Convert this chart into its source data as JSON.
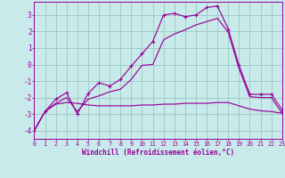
{
  "bg_color": "#c8eaea",
  "grid_color": "#9ac8c0",
  "line_color": "#990099",
  "xlim": [
    0,
    23
  ],
  "ylim": [
    -4.5,
    3.8
  ],
  "yticks": [
    -4,
    -3,
    -2,
    -1,
    0,
    1,
    2,
    3
  ],
  "xticks": [
    0,
    1,
    2,
    3,
    4,
    5,
    6,
    7,
    8,
    9,
    10,
    11,
    12,
    13,
    14,
    15,
    16,
    17,
    18,
    19,
    20,
    21,
    22,
    23
  ],
  "xlabel": "Windchill (Refroidissement éolien,°C)",
  "line1_x": [
    0,
    1,
    2,
    3,
    4,
    5,
    6,
    7,
    8,
    9,
    10,
    11,
    12,
    13,
    14,
    15,
    16,
    17,
    18,
    19,
    20,
    21,
    22,
    23
  ],
  "line1_y": [
    -4.0,
    -2.85,
    -2.1,
    -1.7,
    -3.0,
    -1.75,
    -1.1,
    -1.3,
    -0.9,
    -0.1,
    0.65,
    1.4,
    3.0,
    3.1,
    2.9,
    3.0,
    3.45,
    3.55,
    2.15,
    -0.05,
    -1.8,
    -1.8,
    -1.8,
    -2.75
  ],
  "line2_x": [
    0,
    1,
    2,
    3,
    4,
    5,
    6,
    7,
    8,
    9,
    10,
    11,
    12,
    13,
    14,
    15,
    16,
    17,
    18,
    19,
    20,
    21,
    22,
    23
  ],
  "line2_y": [
    -4.0,
    -2.85,
    -2.35,
    -2.0,
    -2.85,
    -2.1,
    -1.9,
    -1.65,
    -1.5,
    -0.9,
    -0.05,
    0.0,
    1.5,
    1.85,
    2.1,
    2.4,
    2.6,
    2.8,
    1.95,
    -0.25,
    -1.95,
    -2.0,
    -2.0,
    -2.95
  ],
  "line3_x": [
    0,
    1,
    2,
    3,
    4,
    5,
    6,
    7,
    8,
    9,
    10,
    11,
    12,
    13,
    14,
    15,
    16,
    17,
    18,
    19,
    20,
    21,
    22,
    23
  ],
  "line3_y": [
    -4.0,
    -2.85,
    -2.4,
    -2.3,
    -2.35,
    -2.45,
    -2.5,
    -2.5,
    -2.5,
    -2.5,
    -2.45,
    -2.45,
    -2.4,
    -2.4,
    -2.35,
    -2.35,
    -2.35,
    -2.3,
    -2.3,
    -2.5,
    -2.7,
    -2.8,
    -2.85,
    -2.95
  ]
}
